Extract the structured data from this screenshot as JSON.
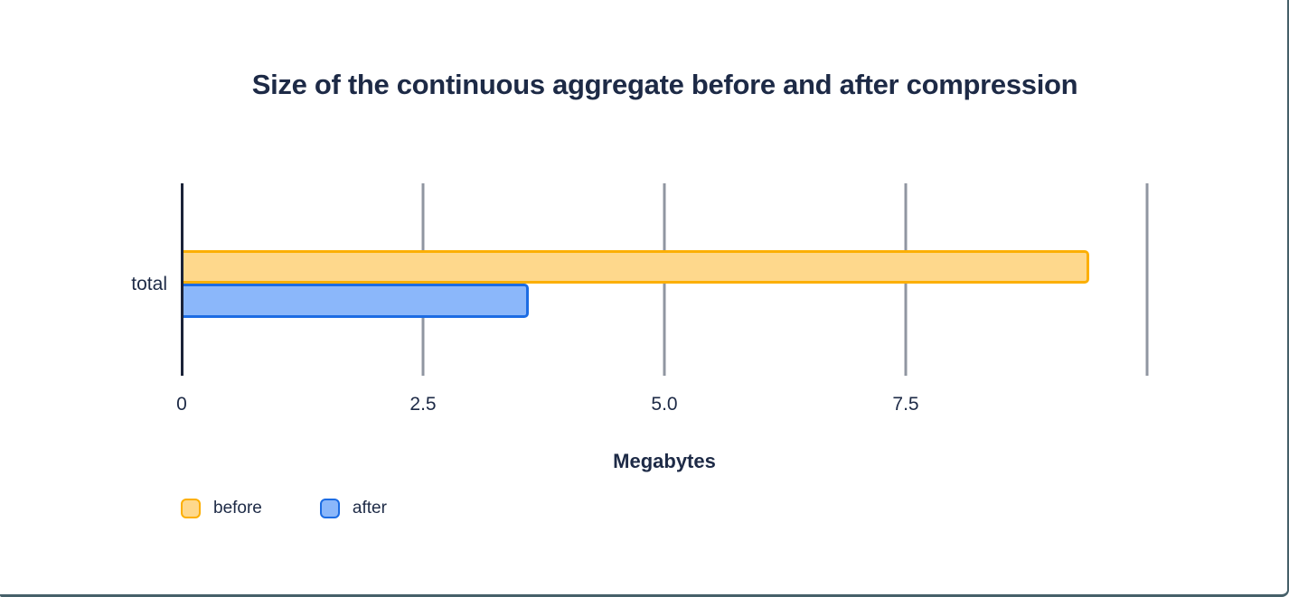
{
  "frame": {
    "background": "#FFFFFF",
    "border_color": "#466069"
  },
  "chart_data": {
    "type": "bar",
    "orientation": "horizontal",
    "title": "Size of the continuous aggregate before and after compression",
    "xlabel": "Megabytes",
    "categories": [
      "total"
    ],
    "series": [
      {
        "name": "before",
        "values": [
          9.4
        ],
        "fill": "#FED88C",
        "stroke": "#FCAF03"
      },
      {
        "name": "after",
        "values": [
          3.6
        ],
        "fill": "#8BB7FA",
        "stroke": "#1C6CE3"
      }
    ],
    "xlim": [
      0,
      10
    ],
    "xticks": [
      {
        "value": 0,
        "label": "0"
      },
      {
        "value": 2.5,
        "label": "2.5"
      },
      {
        "value": 5,
        "label": "5.0"
      },
      {
        "value": 7.5,
        "label": "7.5"
      },
      {
        "value": 10,
        "label": ""
      }
    ],
    "grid": true,
    "legend_position": "bottom-left",
    "axis_color": "#1B2338",
    "gridline_color": "#9096A1",
    "text_color": "#1D2A46"
  }
}
